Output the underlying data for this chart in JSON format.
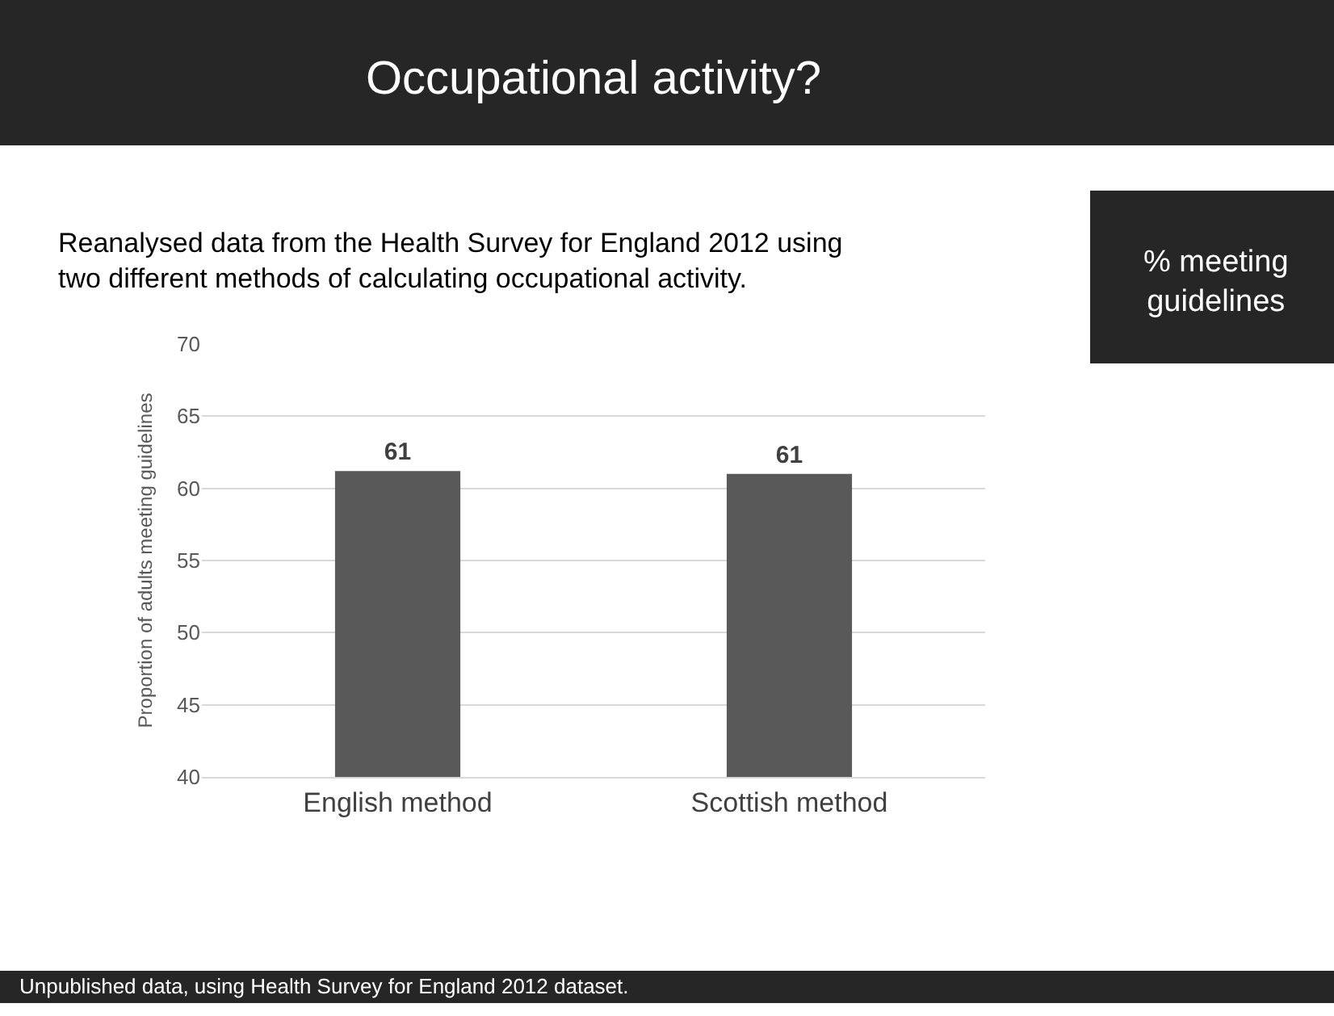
{
  "chart_data": {
    "type": "bar",
    "title": "Occupational activity?",
    "subtitle": "Reanalysed data from the Health Survey for England 2012 using\ntwo different methods of calculating occupational activity.",
    "ylabel": "Proportion of adults meeting guidelines",
    "categories": [
      "English method",
      "Scottish method"
    ],
    "values": [
      61.2,
      61.0
    ],
    "value_labels": [
      "61",
      "61"
    ],
    "color": "#595959",
    "ylim": [
      40,
      70
    ],
    "yticks": [
      40,
      45,
      50,
      55,
      60,
      65,
      70
    ],
    "grid": "y",
    "legend": false,
    "annotations": [
      "% meeting\nguidelines",
      "Unpublished data, using Health Survey for England 2012 dataset."
    ]
  }
}
